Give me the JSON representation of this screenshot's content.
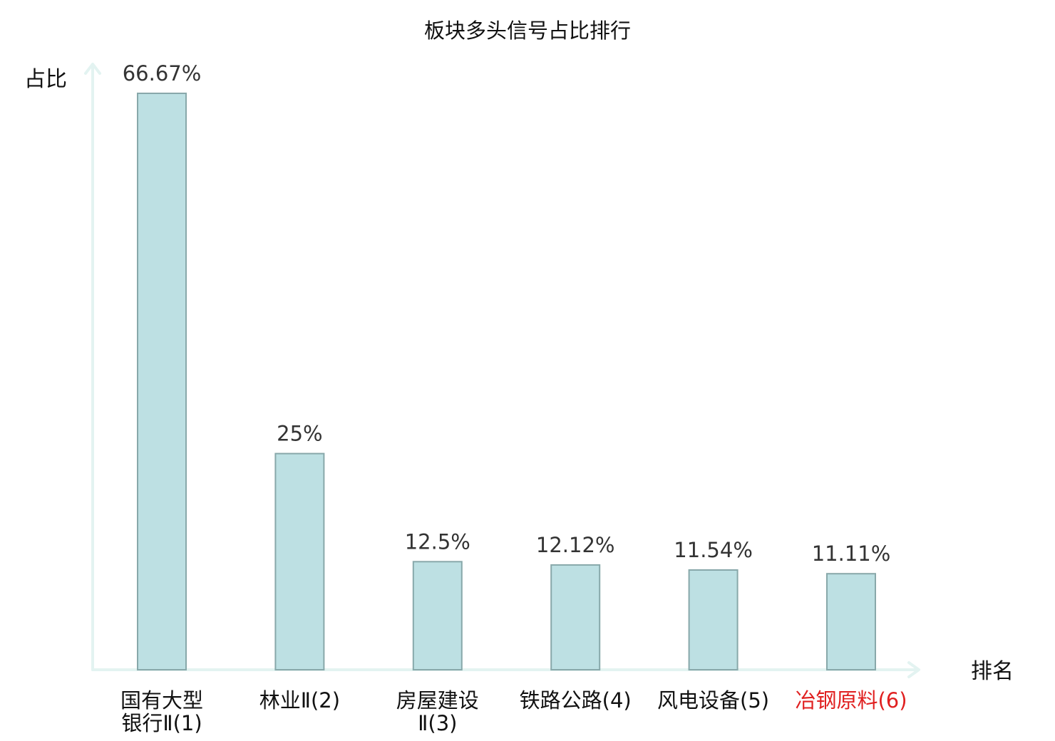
{
  "colors": {
    "bar_fill": "#bde0e3",
    "bar_stroke": "#88a8aa",
    "axis": "#e3f3f1",
    "text": "#111111",
    "value_text": "#333333",
    "highlight": "#e02020"
  },
  "chart_data": {
    "type": "bar",
    "title": "板块多头信号占比排行",
    "xlabel": "排名",
    "ylabel": "占比",
    "ylim": [
      0,
      66.67
    ],
    "grid": false,
    "legend": "none",
    "categories": [
      {
        "lines": [
          "国有大型",
          "银行Ⅱ(1)"
        ],
        "highlight": false
      },
      {
        "lines": [
          "林业Ⅱ(2)"
        ],
        "highlight": false
      },
      {
        "lines": [
          "房屋建设",
          "Ⅱ(3)"
        ],
        "highlight": false
      },
      {
        "lines": [
          "铁路公路(4)"
        ],
        "highlight": false
      },
      {
        "lines": [
          "风电设备(5)"
        ],
        "highlight": false
      },
      {
        "lines": [
          "冶钢原料(6)"
        ],
        "highlight": true
      }
    ],
    "values": [
      66.67,
      25,
      12.5,
      12.12,
      11.54,
      11.11
    ],
    "value_labels": [
      "66.67%",
      "25%",
      "12.5%",
      "12.12%",
      "11.54%",
      "11.11%"
    ]
  }
}
